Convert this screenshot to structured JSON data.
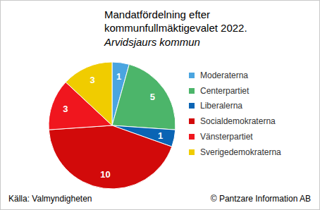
{
  "chart_data": {
    "type": "pie",
    "title": "Mandatfördelning efter kommunfullmäktigevalet 2022.",
    "subtitle": "Arvidsjaurs kommun",
    "categories": [
      "Moderaterna",
      "Centerpartiet",
      "Liberalerna",
      "Socialdemokraterna",
      "Vänsterpartiet",
      "Sverigedemokraterna"
    ],
    "values": [
      1,
      5,
      1,
      10,
      3,
      3
    ],
    "colors": [
      "#4aa5e0",
      "#4cb56a",
      "#0a64b4",
      "#d20a0a",
      "#f0161e",
      "#f0cc00"
    ],
    "data_labels": true,
    "legend": "right",
    "annotations": [
      "Källa: Valmyndigheten",
      "© Pantzare Information AB"
    ]
  }
}
